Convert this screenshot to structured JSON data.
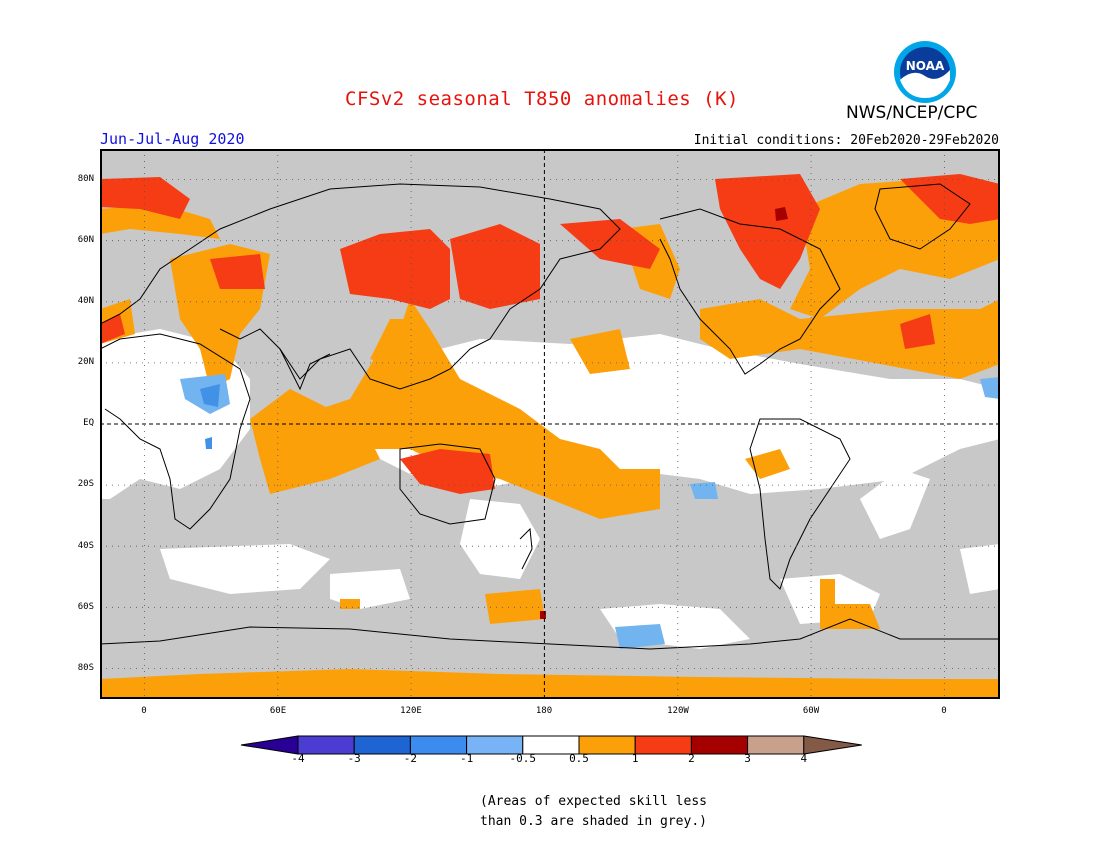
{
  "header": {
    "title": "CFSv2 seasonal T850 anomalies (K)",
    "agency": "NWS/NCEP/CPC",
    "season": "Jun-Jul-Aug 2020",
    "initial_conditions": "Initial conditions: 20Feb2020-29Feb2020",
    "logo_text": "NOAA"
  },
  "map": {
    "lat_labels": [
      "80N",
      "60N",
      "40N",
      "20N",
      "EQ",
      "20S",
      "40S",
      "60S",
      "80S"
    ],
    "lon_labels": [
      "0",
      "60E",
      "120E",
      "180",
      "120W",
      "60W",
      "0"
    ],
    "grey_meaning": "low skill",
    "colors": {
      "grey": "#c8c8c8",
      "white": "#ffffff",
      "orange": "#fca00a",
      "red": "#f53c14",
      "darkred": "#a60000",
      "lightblue": "#72b4ef",
      "blue": "#4192e6"
    }
  },
  "colorbar": {
    "labels": [
      "-4",
      "-3",
      "-2",
      "-1",
      "-0.5",
      "0.5",
      "1",
      "2",
      "3",
      "4"
    ],
    "colors": [
      "#280096",
      "#4b3cd2",
      "#1e64d2",
      "#3c8cf0",
      "#78b4f5",
      "#ffffff",
      "#fca00a",
      "#f53c14",
      "#a50000",
      "#c8a08c",
      "#825a46"
    ]
  },
  "footnote": {
    "line1": "(Areas of expected skill less",
    "line2": "than 0.3 are shaded in grey.)"
  }
}
